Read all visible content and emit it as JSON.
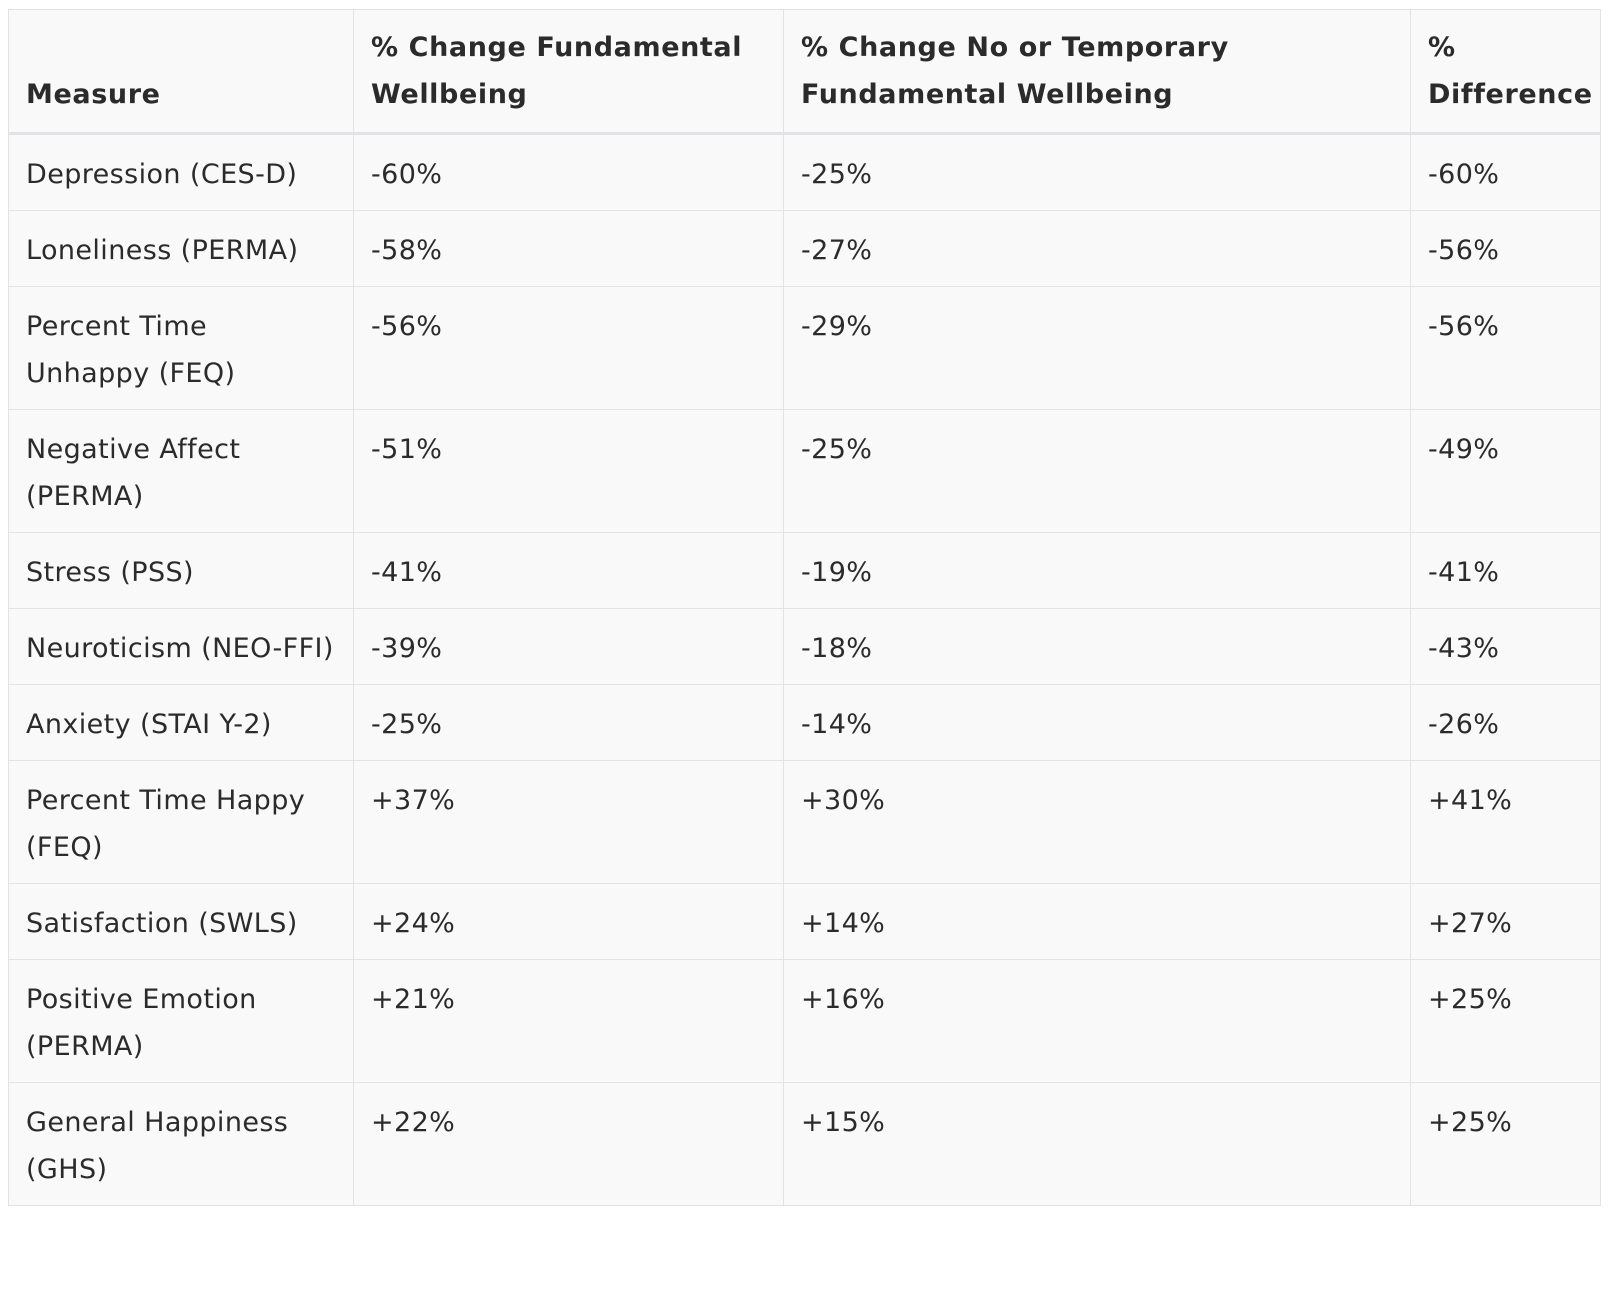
{
  "table": {
    "headers": [
      "Measure",
      "% Change Fundamental Wellbeing",
      "% Change No or Temporary Fundamental Wellbeing",
      "% Difference"
    ],
    "rows": [
      [
        "Depression (CES-D)",
        "-60%",
        "-25%",
        "-60%"
      ],
      [
        "Loneliness (PERMA)",
        "-58%",
        "-27%",
        "-56%"
      ],
      [
        "Percent Time Unhappy (FEQ)",
        "-56%",
        "-29%",
        "-56%"
      ],
      [
        "Negative Affect (PERMA)",
        "-51%",
        "-25%",
        "-49%"
      ],
      [
        "Stress (PSS)",
        "-41%",
        "-19%",
        "-41%"
      ],
      [
        "Neuroticism (NEO-FFI)",
        "-39%",
        "-18%",
        "-43%"
      ],
      [
        "Anxiety (STAI Y-2)",
        "-25%",
        "-14%",
        "-26%"
      ],
      [
        "Percent Time Happy (FEQ)",
        "+37%",
        "+30%",
        "+41%"
      ],
      [
        "Satisfaction (SWLS)",
        "+24%",
        "+14%",
        "+27%"
      ],
      [
        "Positive Emotion (PERMA)",
        "+21%",
        "+16%",
        "+25%"
      ],
      [
        "General Happiness (GHS)",
        "+22%",
        "+15%",
        "+25%"
      ]
    ]
  }
}
